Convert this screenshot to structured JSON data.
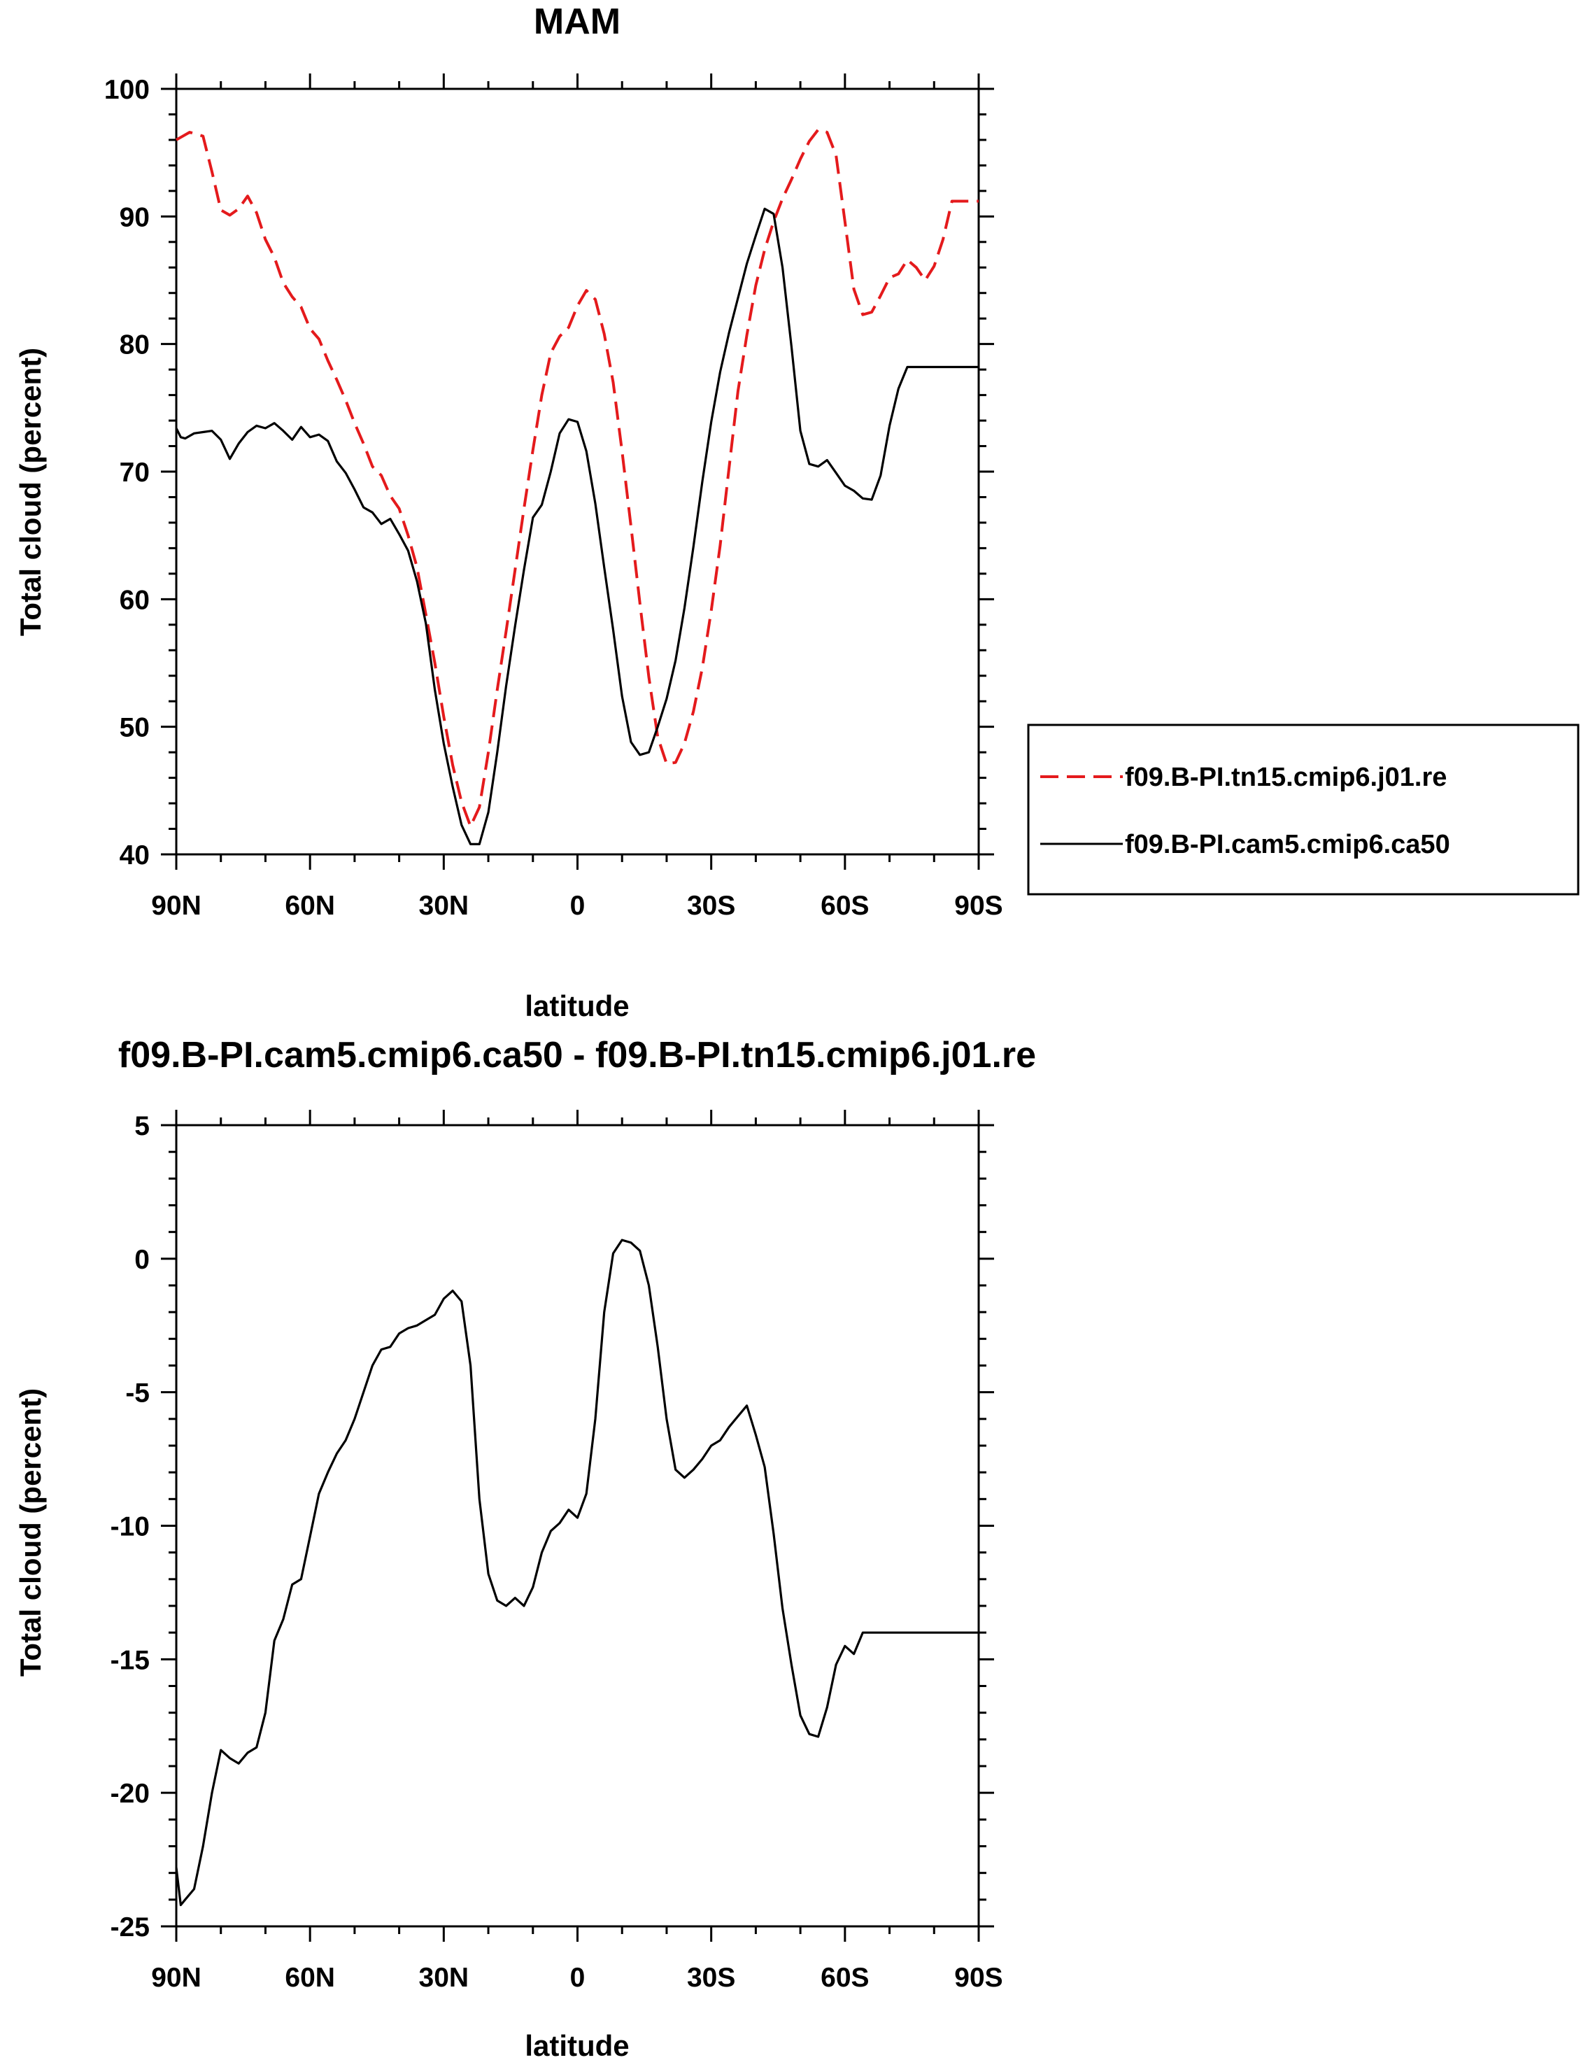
{
  "chart_data": [
    {
      "type": "line",
      "title": "MAM",
      "xlabel": "latitude",
      "ylabel": "Total cloud (percent)",
      "xlim": [
        90,
        -90
      ],
      "ylim": [
        40,
        100
      ],
      "yticks": [
        40,
        50,
        60,
        70,
        80,
        90,
        100
      ],
      "xticks": [
        90,
        60,
        30,
        0,
        -30,
        -60,
        -90
      ],
      "xtick_labels": [
        "90N",
        "60N",
        "30N",
        "0",
        "30S",
        "60S",
        "90S"
      ],
      "legend_position": "right",
      "series": [
        {
          "name": "f09.B-PI.tn15.cmip6.j01.re",
          "color": "#e41a1c",
          "dash": "dashed",
          "x": [
            90,
            87,
            84,
            82,
            80,
            78,
            76,
            74,
            72,
            70,
            68,
            66,
            64,
            62,
            60,
            58,
            56,
            54,
            52,
            50,
            48,
            46,
            44,
            42,
            40,
            38,
            36,
            34,
            32,
            30,
            28,
            26,
            24,
            22,
            20,
            18,
            16,
            14,
            12,
            10,
            8,
            6,
            4,
            2,
            0,
            -2,
            -4,
            -6,
            -8,
            -10,
            -12,
            -14,
            -16,
            -18,
            -20,
            -22,
            -24,
            -26,
            -28,
            -30,
            -32,
            -34,
            -36,
            -38,
            -40,
            -42,
            -44,
            -46,
            -48,
            -50,
            -52,
            -54,
            -56,
            -58,
            -60,
            -62,
            -64,
            -66,
            -68,
            -70,
            -72,
            -74,
            -76,
            -78,
            -80,
            -82,
            -84,
            -86,
            -88,
            -90
          ],
          "y": [
            96.0,
            96.6,
            96.3,
            93.5,
            90.5,
            90.1,
            90.6,
            91.6,
            90.3,
            88.2,
            86.8,
            84.8,
            83.7,
            82.9,
            81.2,
            80.4,
            78.7,
            77.2,
            75.6,
            73.8,
            72.2,
            70.4,
            69.7,
            68.1,
            67.1,
            65.0,
            62.5,
            58.8,
            55.0,
            50.8,
            47.0,
            44.1,
            42.2,
            43.7,
            48.0,
            52.9,
            57.5,
            62.3,
            67.1,
            71.7,
            76.0,
            79.3,
            80.6,
            81.3,
            83.0,
            84.2,
            83.5,
            80.8,
            77.0,
            71.6,
            65.7,
            59.7,
            53.9,
            49.2,
            47.1,
            47.2,
            48.7,
            51.2,
            54.6,
            59.1,
            64.2,
            70.3,
            76.3,
            80.7,
            84.6,
            87.4,
            89.6,
            91.4,
            92.9,
            94.5,
            95.9,
            96.8,
            96.6,
            94.8,
            89.6,
            84.3,
            82.3,
            82.5,
            83.8,
            85.2,
            85.5,
            86.6,
            86.0,
            85.0,
            86.1,
            88.2,
            91.2,
            91.2,
            91.2,
            91.2
          ]
        },
        {
          "name": "f09.B-PI.cam5.cmip6.ca50",
          "color": "#000000",
          "dash": "solid",
          "x": [
            90,
            89,
            88,
            86,
            84,
            82,
            80,
            78,
            76,
            74,
            72,
            70,
            68,
            66,
            64,
            62,
            60,
            58,
            56,
            54,
            52,
            50,
            48,
            46,
            44,
            42,
            40,
            38,
            36,
            34,
            32,
            30,
            28,
            26,
            24,
            22,
            20,
            18,
            16,
            14,
            12,
            10,
            8,
            6,
            4,
            2,
            0,
            -2,
            -4,
            -6,
            -8,
            -10,
            -12,
            -14,
            -16,
            -18,
            -20,
            -22,
            -24,
            -26,
            -28,
            -30,
            -32,
            -34,
            -36,
            -38,
            -40,
            -42,
            -44,
            -46,
            -48,
            -50,
            -52,
            -54,
            -56,
            -58,
            -60,
            -62,
            -64,
            -66,
            -68,
            -70,
            -72,
            -74,
            -76,
            -78,
            -80,
            -82,
            -84,
            -86,
            -88,
            -90
          ],
          "y": [
            73.4,
            72.7,
            72.6,
            73.0,
            73.1,
            73.2,
            72.5,
            71.0,
            72.2,
            73.1,
            73.6,
            73.4,
            73.8,
            73.2,
            72.5,
            73.5,
            72.7,
            72.9,
            72.4,
            70.8,
            69.9,
            68.6,
            67.2,
            66.8,
            65.9,
            66.3,
            65.1,
            63.8,
            61.4,
            58.1,
            52.9,
            48.7,
            45.3,
            42.3,
            40.8,
            40.8,
            43.3,
            48.0,
            53.2,
            57.9,
            62.3,
            66.4,
            67.4,
            70.0,
            73.0,
            74.1,
            73.9,
            71.6,
            67.5,
            62.5,
            57.6,
            52.4,
            48.8,
            47.8,
            48.0,
            50.0,
            52.2,
            55.2,
            59.3,
            64.1,
            69.2,
            73.9,
            77.8,
            80.9,
            83.6,
            86.3,
            88.5,
            90.6,
            90.2,
            86.0,
            79.8,
            73.2,
            70.6,
            70.4,
            70.9,
            69.9,
            68.9,
            68.5,
            67.9,
            67.8,
            69.7,
            73.6,
            76.5,
            78.2,
            78.2,
            78.2,
            78.2,
            78.2,
            78.2,
            78.2,
            78.2,
            78.2
          ]
        }
      ]
    },
    {
      "type": "line",
      "title": "f09.B-PI.cam5.cmip6.ca50 - f09.B-PI.tn15.cmip6.j01.re",
      "xlabel": "latitude",
      "ylabel": "Total cloud (percent)",
      "xlim": [
        90,
        -90
      ],
      "ylim": [
        -25,
        5
      ],
      "yticks": [
        -25,
        -20,
        -15,
        -10,
        -5,
        0,
        5
      ],
      "xticks": [
        90,
        60,
        30,
        0,
        -30,
        -60,
        -90
      ],
      "xtick_labels": [
        "90N",
        "60N",
        "30N",
        "0",
        "30S",
        "60S",
        "90S"
      ],
      "series": [
        {
          "color": "#000000",
          "dash": "solid",
          "x": [
            90,
            89,
            88,
            86,
            84,
            82,
            80,
            78,
            76,
            74,
            72,
            70,
            68,
            66,
            64,
            62,
            60,
            58,
            56,
            54,
            52,
            50,
            48,
            46,
            44,
            42,
            40,
            38,
            36,
            34,
            32,
            30,
            28,
            26,
            24,
            22,
            20,
            18,
            16,
            14,
            12,
            10,
            8,
            6,
            4,
            2,
            0,
            -2,
            -4,
            -6,
            -8,
            -10,
            -12,
            -14,
            -16,
            -18,
            -20,
            -22,
            -24,
            -26,
            -28,
            -30,
            -32,
            -34,
            -36,
            -38,
            -40,
            -42,
            -44,
            -46,
            -48,
            -50,
            -52,
            -54,
            -56,
            -58,
            -60,
            -62,
            -64,
            -66,
            -68,
            -70,
            -72,
            -74,
            -76,
            -78,
            -80,
            -82,
            -84,
            -86,
            -88,
            -90
          ],
          "y": [
            -22.8,
            -24.2,
            -24.0,
            -23.6,
            -22.0,
            -20.0,
            -18.4,
            -18.7,
            -18.9,
            -18.5,
            -18.3,
            -17.0,
            -14.3,
            -13.5,
            -12.2,
            -12.0,
            -10.4,
            -8.8,
            -8.0,
            -7.3,
            -6.8,
            -6.0,
            -5.0,
            -4.0,
            -3.4,
            -3.3,
            -2.8,
            -2.6,
            -2.5,
            -2.3,
            -2.1,
            -1.5,
            -1.2,
            -1.6,
            -4.0,
            -9.0,
            -11.8,
            -12.8,
            -13.0,
            -12.7,
            -13.0,
            -12.3,
            -11.0,
            -10.2,
            -9.9,
            -9.4,
            -9.7,
            -8.8,
            -6.0,
            -2.0,
            0.2,
            0.7,
            0.6,
            0.3,
            -1.0,
            -3.3,
            -6.0,
            -7.9,
            -8.2,
            -7.9,
            -7.5,
            -7.0,
            -6.8,
            -6.3,
            -5.9,
            -5.5,
            -6.6,
            -7.8,
            -10.3,
            -13.1,
            -15.2,
            -17.1,
            -17.8,
            -17.9,
            -16.8,
            -15.2,
            -14.5,
            -14.8,
            -14.0,
            -14.0,
            -14.0,
            -14.0,
            -14.0,
            -14.0,
            -14.0,
            -14.0,
            -14.0,
            -14.0,
            -14.0,
            -14.0,
            -14.0,
            -14.0
          ]
        }
      ]
    }
  ]
}
